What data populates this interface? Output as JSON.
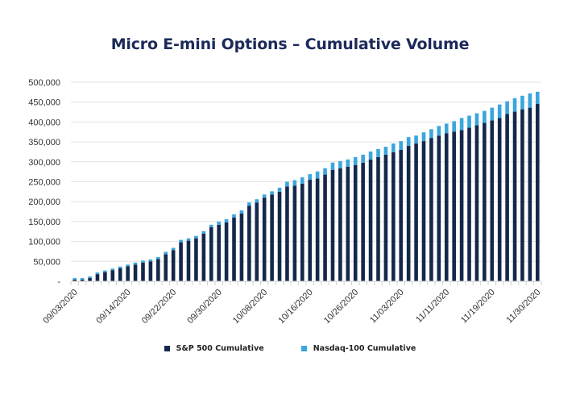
{
  "chart_data": {
    "type": "bar",
    "stacked": true,
    "title": "Micro E-mini Options – Cumulative Volume",
    "xlabel": "",
    "ylabel": "",
    "ylim": [
      0,
      500000
    ],
    "yticks": [
      0,
      50000,
      100000,
      150000,
      200000,
      250000,
      300000,
      350000,
      400000,
      450000,
      500000
    ],
    "ytick_labels": [
      "-",
      "50,000",
      "100,000",
      "150,000",
      "200,000",
      "250,000",
      "300,000",
      "350,000",
      "400,000",
      "450,000",
      "500,000"
    ],
    "grid": true,
    "legend_position": "bottom",
    "xtick_labels": [
      {
        "index": 0,
        "label": "09/03/2020"
      },
      {
        "index": 7,
        "label": "09/14/2020"
      },
      {
        "index": 13,
        "label": "09/22/2020"
      },
      {
        "index": 19,
        "label": "09/30/2020"
      },
      {
        "index": 25,
        "label": "10/08/2020"
      },
      {
        "index": 31,
        "label": "10/16/2020"
      },
      {
        "index": 37,
        "label": "10/26/2020"
      },
      {
        "index": 43,
        "label": "11/03/2020"
      },
      {
        "index": 49,
        "label": "11/11/2020"
      },
      {
        "index": 55,
        "label": "11/19/2020"
      },
      {
        "index": 61,
        "label": "11/30/2020"
      }
    ],
    "series": [
      {
        "name": "S&P 500 Cumulative",
        "color": "#14284b",
        "values": [
          4000,
          4000,
          8000,
          18000,
          23000,
          28000,
          33000,
          38000,
          42000,
          47000,
          50000,
          56000,
          68000,
          78000,
          98000,
          102000,
          108000,
          120000,
          136000,
          142000,
          148000,
          160000,
          170000,
          190000,
          198000,
          210000,
          218000,
          225000,
          238000,
          240000,
          245000,
          255000,
          258000,
          268000,
          280000,
          284000,
          288000,
          292000,
          298000,
          306000,
          312000,
          318000,
          324000,
          330000,
          340000,
          346000,
          352000,
          360000,
          366000,
          372000,
          376000,
          380000,
          386000,
          392000,
          398000,
          404000,
          410000,
          420000,
          426000,
          432000,
          436000,
          446000
        ]
      },
      {
        "name": "Nasdaq-100 Cumulative",
        "color": "#3aa6dd",
        "values": [
          4000,
          4000,
          4000,
          4000,
          4000,
          4000,
          4000,
          4000,
          5000,
          5000,
          5000,
          5000,
          6000,
          6000,
          6000,
          6000,
          6000,
          6000,
          6000,
          8000,
          8000,
          8000,
          8000,
          8000,
          8000,
          8000,
          8000,
          10000,
          12000,
          14000,
          16000,
          14000,
          18000,
          16000,
          18000,
          18000,
          18000,
          20000,
          20000,
          20000,
          20000,
          20000,
          22000,
          22000,
          22000,
          20000,
          22000,
          22000,
          24000,
          24000,
          26000,
          30000,
          30000,
          30000,
          30000,
          32000,
          34000,
          32000,
          34000,
          34000,
          36000,
          30000
        ]
      }
    ]
  }
}
